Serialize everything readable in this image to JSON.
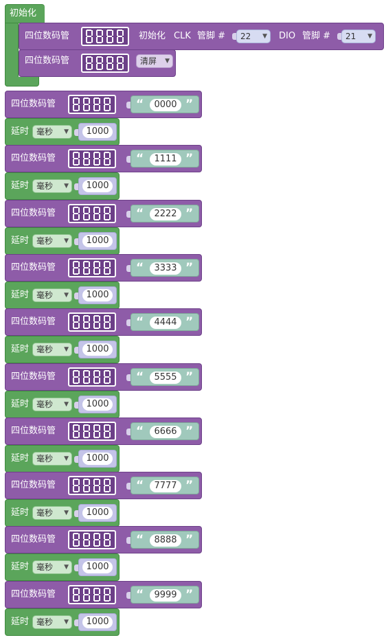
{
  "setup": {
    "title": "初始化",
    "init_block": {
      "label": "四位数码管",
      "init_label": "初始化",
      "clk_label": "CLK",
      "pin_label1": "管脚 #",
      "clk_pin": "22",
      "dio_label": "DIO",
      "pin_label2": "管脚 #",
      "dio_pin": "21"
    },
    "clear_block": {
      "label": "四位数码管",
      "mode": "清屏"
    }
  },
  "program": [
    {
      "display_label": "四位数码管",
      "text": "0000",
      "delay_label": "延时",
      "unit": "毫秒",
      "delay_value": "1000"
    },
    {
      "display_label": "四位数码管",
      "text": "1111",
      "delay_label": "延时",
      "unit": "毫秒",
      "delay_value": "1000"
    },
    {
      "display_label": "四位数码管",
      "text": "2222",
      "delay_label": "延时",
      "unit": "毫秒",
      "delay_value": "1000"
    },
    {
      "display_label": "四位数码管",
      "text": "3333",
      "delay_label": "延时",
      "unit": "毫秒",
      "delay_value": "1000"
    },
    {
      "display_label": "四位数码管",
      "text": "4444",
      "delay_label": "延时",
      "unit": "毫秒",
      "delay_value": "1000"
    },
    {
      "display_label": "四位数码管",
      "text": "5555",
      "delay_label": "延时",
      "unit": "毫秒",
      "delay_value": "1000"
    },
    {
      "display_label": "四位数码管",
      "text": "6666",
      "delay_label": "延时",
      "unit": "毫秒",
      "delay_value": "1000"
    },
    {
      "display_label": "四位数码管",
      "text": "7777",
      "delay_label": "延时",
      "unit": "毫秒",
      "delay_value": "1000"
    },
    {
      "display_label": "四位数码管",
      "text": "8888",
      "delay_label": "延时",
      "unit": "毫秒",
      "delay_value": "1000"
    },
    {
      "display_label": "四位数码管",
      "text": "9999",
      "delay_label": "延时",
      "unit": "毫秒",
      "delay_value": "1000"
    }
  ],
  "icons": {
    "display": "seven-segment-display-icon",
    "dropdown": "triangle-down-icon",
    "quote_open": "“",
    "quote_close": "”"
  },
  "colors": {
    "control_green": "#5ba55b",
    "display_purple": "#8e5ca8",
    "text_block": "#a0c9bc",
    "number_block": "#c4c4e8"
  }
}
